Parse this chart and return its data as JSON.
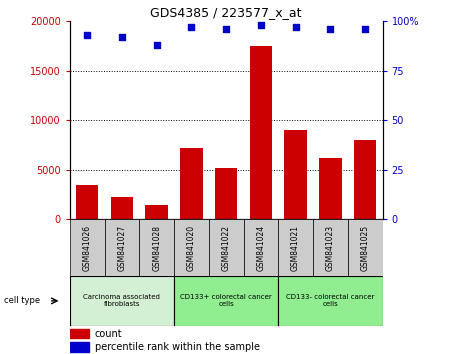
{
  "title": "GDS4385 / 223577_x_at",
  "samples": [
    "GSM841026",
    "GSM841027",
    "GSM841028",
    "GSM841020",
    "GSM841022",
    "GSM841024",
    "GSM841021",
    "GSM841023",
    "GSM841025"
  ],
  "counts": [
    3500,
    2300,
    1500,
    7200,
    5200,
    17500,
    9000,
    6200,
    8000
  ],
  "percentile_ranks": [
    93,
    92,
    88,
    97,
    96,
    98,
    97,
    96,
    96
  ],
  "group_labels": [
    "Carcinoma associated\nfibroblasts",
    "CD133+ colorectal cancer\ncells",
    "CD133- colorectal cancer\ncells"
  ],
  "group_starts": [
    0,
    3,
    6
  ],
  "group_ends": [
    3,
    6,
    9
  ],
  "group_colors": [
    "#d4f0d4",
    "#90ee90",
    "#90ee90"
  ],
  "ylim_left": [
    0,
    20000
  ],
  "ylim_right": [
    0,
    100
  ],
  "yticks_left": [
    0,
    5000,
    10000,
    15000,
    20000
  ],
  "yticks_right": [
    0,
    25,
    50,
    75,
    100
  ],
  "bar_color": "#cc0000",
  "dot_color": "#0000cc",
  "tick_area_color": "#cccccc",
  "legend_count_color": "#cc0000",
  "legend_pct_color": "#0000cc",
  "grid_lines": [
    5000,
    10000,
    15000
  ]
}
